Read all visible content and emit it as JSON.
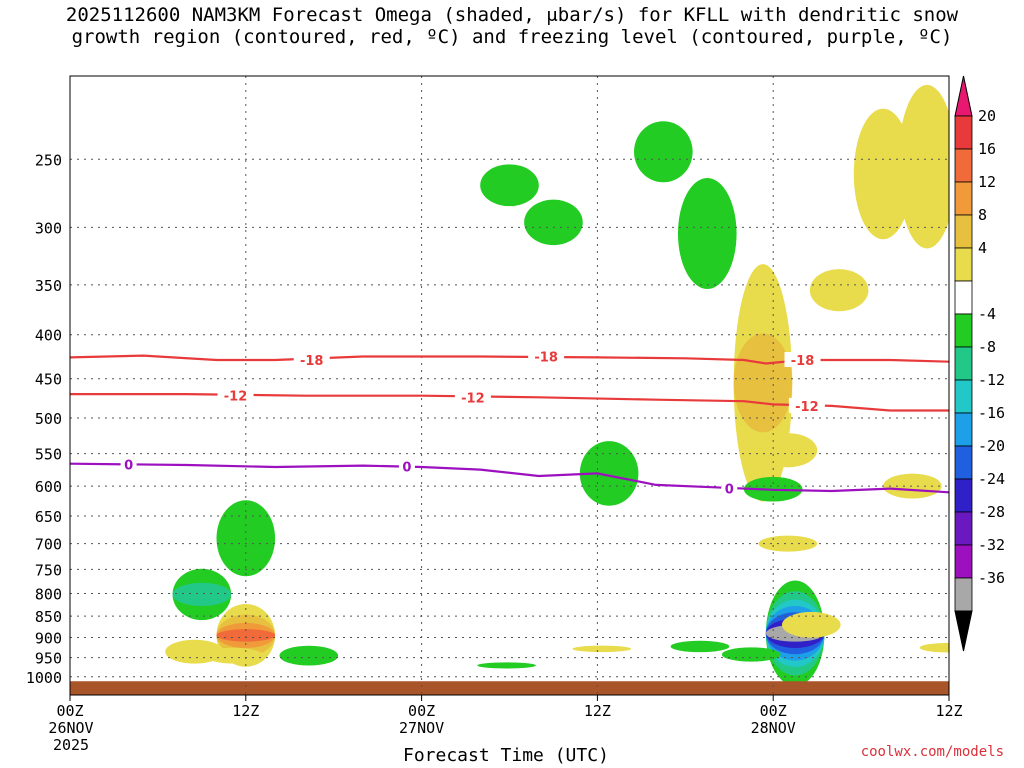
{
  "title": {
    "line1": "2025112600 NAM3KM Forecast Omega (shaded, μbar/s) for KFLL with dendritic snow",
    "line2": "growth region (contoured, red, ºC) and freezing level (contoured, purple, ºC)"
  },
  "credit": "coolwx.com/models",
  "chart_data": {
    "type": "heatmap",
    "xlabel": "Forecast Time (UTC)",
    "ylabel": "",
    "x_range_hours": [
      0,
      60
    ],
    "x_ticks": [
      {
        "hour": 0,
        "lines": [
          "00Z",
          "26NOV",
          "2025"
        ]
      },
      {
        "hour": 12,
        "lines": [
          "12Z"
        ]
      },
      {
        "hour": 24,
        "lines": [
          "00Z",
          "27NOV"
        ]
      },
      {
        "hour": 36,
        "lines": [
          "12Z"
        ]
      },
      {
        "hour": 48,
        "lines": [
          "00Z",
          "28NOV"
        ]
      },
      {
        "hour": 60,
        "lines": [
          "12Z"
        ]
      }
    ],
    "y_range_hpa": [
      1050,
      200
    ],
    "y_scale": "log",
    "y_ticks": [
      250,
      300,
      350,
      400,
      450,
      500,
      550,
      600,
      650,
      700,
      750,
      800,
      850,
      900,
      950,
      1000
    ],
    "grid": true,
    "colorbar": {
      "placement": "right",
      "labels": [
        20,
        16,
        12,
        8,
        4,
        -4,
        -8,
        -12,
        -16,
        -20,
        -24,
        -28,
        -32,
        -36
      ],
      "colors": [
        "#e8176f",
        "#e83a3a",
        "#f06a3a",
        "#f09a3a",
        "#e8c040",
        "#e8dc4c",
        "#ffffff",
        "#22cc22",
        "#22c888",
        "#22c8c8",
        "#1ea0e8",
        "#2060e0",
        "#3020c8",
        "#6a18c0",
        "#9c10c0",
        "#a8a8a8",
        "#000000"
      ]
    },
    "contours": [
      {
        "label": "-18",
        "color": "#e83a3a",
        "points": [
          [
            0,
            425
          ],
          [
            5,
            423
          ],
          [
            10,
            428
          ],
          [
            14,
            428
          ],
          [
            20,
            424
          ],
          [
            28,
            424
          ],
          [
            36,
            425
          ],
          [
            42,
            426
          ],
          [
            46,
            428
          ],
          [
            47.5,
            432
          ],
          [
            50,
            428
          ],
          [
            56,
            428
          ],
          [
            60,
            430
          ]
        ]
      },
      {
        "label": "-12",
        "color": "#e83a3a",
        "points": [
          [
            0,
            469
          ],
          [
            8,
            469
          ],
          [
            16,
            471
          ],
          [
            24,
            471
          ],
          [
            32,
            473
          ],
          [
            40,
            476
          ],
          [
            46,
            478
          ],
          [
            48,
            482
          ],
          [
            52,
            484
          ],
          [
            56,
            490
          ],
          [
            60,
            490
          ]
        ]
      },
      {
        "label": "0",
        "color": "#9c10c0",
        "points": [
          [
            0,
            565
          ],
          [
            8,
            567
          ],
          [
            14,
            570
          ],
          [
            20,
            568
          ],
          [
            24,
            570
          ],
          [
            28,
            574
          ],
          [
            32,
            584
          ],
          [
            36,
            580
          ],
          [
            40,
            598
          ],
          [
            44,
            602
          ],
          [
            48,
            606
          ],
          [
            52,
            608
          ],
          [
            56,
            604
          ],
          [
            60,
            610
          ]
        ]
      }
    ],
    "contour_labels": [
      {
        "text": "-18",
        "hour": 16.5,
        "hpa": 428
      },
      {
        "text": "-18",
        "hour": 32.5,
        "hpa": 424
      },
      {
        "text": "-18",
        "hour": 50,
        "hpa": 428
      },
      {
        "text": "-12",
        "hour": 11.3,
        "hpa": 471
      },
      {
        "text": "-12",
        "hour": 27.5,
        "hpa": 473
      },
      {
        "text": "-12",
        "hour": 50.3,
        "hpa": 484
      },
      {
        "text": "0",
        "hour": 4,
        "hpa": 566
      },
      {
        "text": "0",
        "hour": 23,
        "hpa": 569
      },
      {
        "text": "0",
        "hour": 45,
        "hpa": 604
      }
    ],
    "omega_blobs": [
      {
        "hour": 9,
        "hpa": 802,
        "dh": 0.7,
        "levels_hpa": [
          55,
          25
        ],
        "values": [
          -4,
          -8
        ]
      },
      {
        "hour": 12,
        "hpa": 690,
        "dh": 0.4,
        "levels_hpa": [
          70
        ],
        "values": [
          -4
        ]
      },
      {
        "hour": 16.3,
        "hpa": 945,
        "dh": 0.5,
        "levels_hpa": [
          25
        ],
        "values": [
          -4
        ]
      },
      {
        "hour": 8.5,
        "hpa": 935,
        "dh": 0.8,
        "levels_hpa": [
          30
        ],
        "values": [
          4
        ]
      },
      {
        "hour": 12,
        "hpa": 895,
        "dh": 0.8,
        "levels_hpa": [
          75,
          50,
          30,
          15
        ],
        "values": [
          4,
          8,
          12,
          16
        ]
      },
      {
        "hour": 11.2,
        "hpa": 945,
        "dh": 0.8,
        "levels_hpa": [
          20
        ],
        "values": [
          4
        ]
      },
      {
        "hour": 30,
        "hpa": 268,
        "dh": 0.2,
        "levels_hpa": [
          15
        ],
        "values": [
          -4
        ]
      },
      {
        "hour": 33,
        "hpa": 296,
        "dh": 0.35,
        "levels_hpa": [
          18
        ],
        "values": [
          -4
        ]
      },
      {
        "hour": 40.5,
        "hpa": 245,
        "dh": 0.2,
        "levels_hpa": [
          20
        ],
        "values": [
          -4
        ]
      },
      {
        "hour": 43.5,
        "hpa": 305,
        "dh": 0.3,
        "levels_hpa": [
          45
        ],
        "values": [
          -4
        ]
      },
      {
        "hour": 36.8,
        "hpa": 580,
        "dh": 0.2,
        "levels_hpa": [
          50
        ],
        "values": [
          -4
        ]
      },
      {
        "hour": 47.3,
        "hpa": 455,
        "dh": 0.5,
        "levels_hpa": [
          140,
          60
        ],
        "values": [
          4,
          8
        ]
      },
      {
        "hour": 52.5,
        "hpa": 355,
        "dh": 0.2,
        "levels_hpa": [
          20
        ],
        "values": [
          4
        ]
      },
      {
        "hour": 55.5,
        "hpa": 260,
        "dh": 0.5,
        "levels_hpa": [
          45
        ],
        "values": [
          4
        ]
      },
      {
        "hour": 58.5,
        "hpa": 255,
        "dh": 0.8,
        "levels_hpa": [
          55
        ],
        "values": [
          4
        ]
      },
      {
        "hour": 49,
        "hpa": 545,
        "dh": 0.3,
        "levels_hpa": [
          25
        ],
        "values": [
          4
        ]
      },
      {
        "hour": 57.5,
        "hpa": 600,
        "dh": 0.2,
        "levels_hpa": [
          20
        ],
        "values": [
          4
        ]
      },
      {
        "hour": 48,
        "hpa": 605,
        "dh": 0.15,
        "levels_hpa": [
          20
        ],
        "values": [
          -4
        ]
      },
      {
        "hour": 49,
        "hpa": 700,
        "dh": 0.15,
        "levels_hpa": [
          15
        ],
        "values": [
          4
        ]
      },
      {
        "hour": 49.5,
        "hpa": 890,
        "dh": 1.2,
        "levels_hpa": [
          125,
          100,
          80,
          65,
          50,
          35,
          20
        ],
        "values": [
          -4,
          -8,
          -12,
          -16,
          -20,
          -24,
          -32
        ]
      },
      {
        "hour": 46.5,
        "hpa": 942,
        "dh": 1.3,
        "levels_hpa": [
          18
        ],
        "values": [
          -4
        ]
      },
      {
        "hour": 36.3,
        "hpa": 928,
        "dh": 0.3,
        "levels_hpa": [
          8
        ],
        "values": [
          4
        ]
      },
      {
        "hour": 43,
        "hpa": 922,
        "dh": 0.3,
        "levels_hpa": [
          14
        ],
        "values": [
          -4
        ]
      },
      {
        "hour": 29.8,
        "hpa": 970,
        "dh": 0.5,
        "levels_hpa": [
          8
        ],
        "values": [
          -4
        ]
      },
      {
        "hour": 60,
        "hpa": 925,
        "dh": 0.3,
        "levels_hpa": [
          12
        ],
        "values": [
          4
        ]
      },
      {
        "hour": 50.6,
        "hpa": 870,
        "dh": 0.2,
        "levels_hpa": [
          30
        ],
        "values": [
          4
        ]
      }
    ]
  }
}
